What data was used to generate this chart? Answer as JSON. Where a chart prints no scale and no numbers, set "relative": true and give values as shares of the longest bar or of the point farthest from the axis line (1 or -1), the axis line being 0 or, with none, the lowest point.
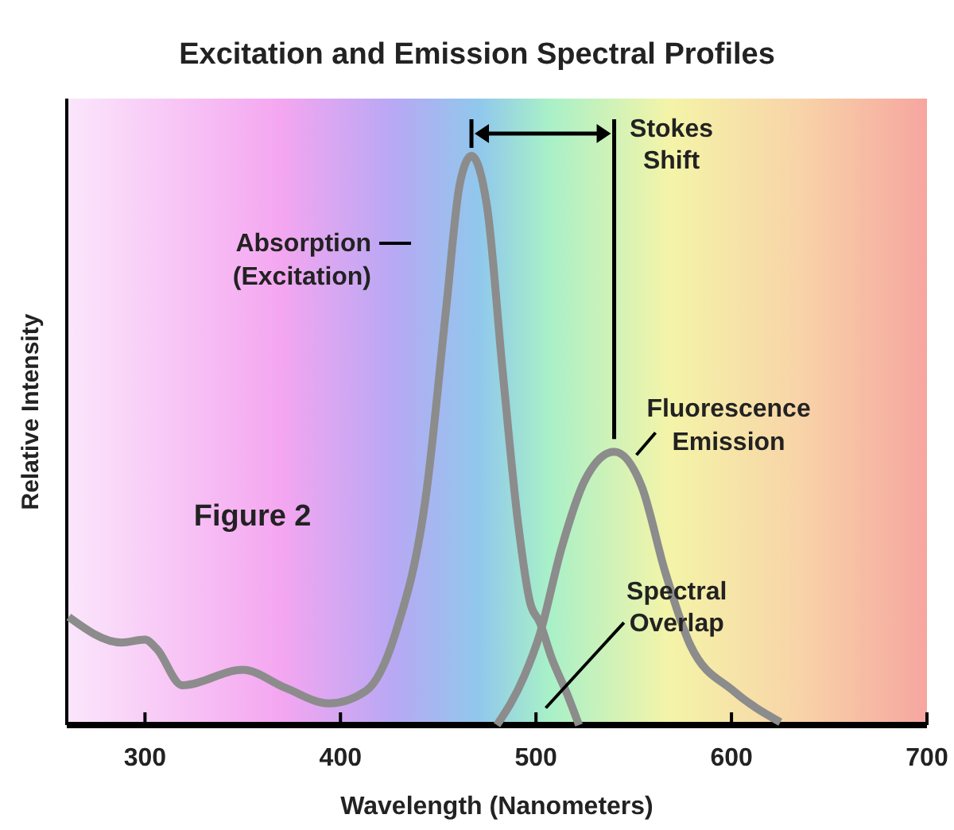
{
  "chart_data": {
    "type": "line",
    "title": "Excitation and Emission Spectral Profiles",
    "xlabel": "Wavelength (Nanometers)",
    "ylabel": "Relative Intensity",
    "relative": true,
    "xlim": [
      260,
      700
    ],
    "xticks": [
      300,
      400,
      500,
      600,
      700
    ],
    "x": [
      261,
      288,
      300,
      306,
      319,
      350,
      372,
      394,
      413,
      428,
      444,
      454,
      461,
      467,
      475,
      483,
      491,
      497,
      502,
      508,
      516,
      522
    ],
    "series": [
      {
        "name": "Absorption (Excitation)",
        "color": "#8c8c8c",
        "values": [
          0.19,
          0.145,
          0.15,
          0.134,
          0.07,
          0.097,
          0.065,
          0.038,
          0.06,
          0.16,
          0.41,
          0.73,
          0.95,
          1,
          0.91,
          0.62,
          0.35,
          0.215,
          0.18,
          0.118,
          0.054,
          0
        ]
      },
      {
        "name": "Fluorescence Emission",
        "color": "#8c8c8c",
        "x": [
          480,
          494,
          502,
          513,
          525,
          540,
          554,
          566,
          579,
          601,
          625
        ],
        "values": [
          0,
          0.086,
          0.16,
          0.31,
          0.43,
          0.48,
          0.42,
          0.27,
          0.14,
          0.06,
          0.005
        ]
      }
    ],
    "annotations": [
      "Stokes Shift",
      "Spectral Overlap",
      "Figure 2"
    ]
  }
}
